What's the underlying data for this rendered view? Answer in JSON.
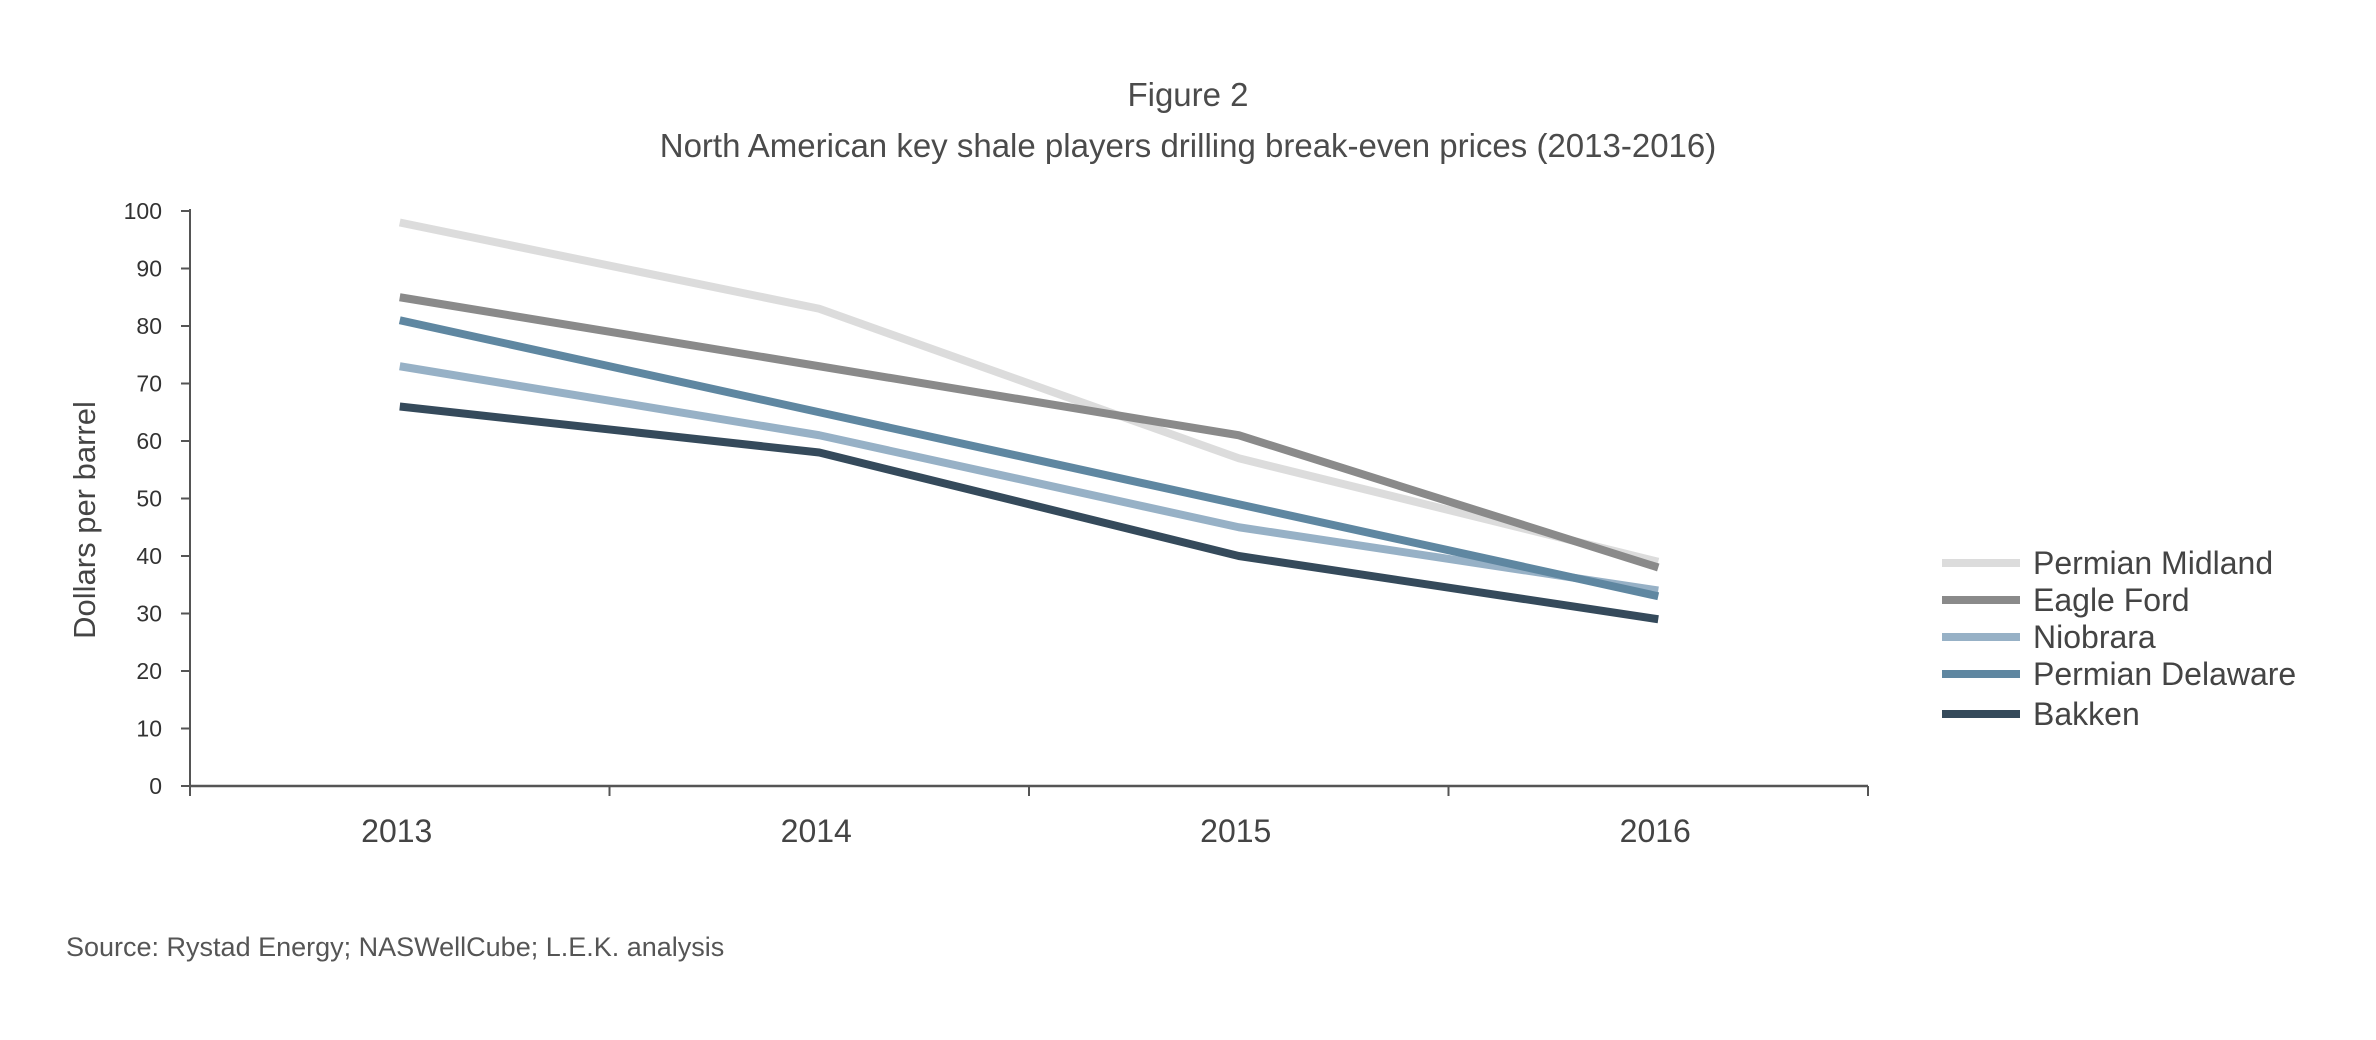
{
  "figure_label": "Figure 2",
  "source": "Source: Rystad Energy; NASWellCube; L.E.K. analysis",
  "chart_data": {
    "type": "line",
    "title": "North American key shale players drilling break-even prices (2013-2016)",
    "xlabel": "",
    "ylabel": "Dollars per barrel",
    "x": [
      "2013",
      "2014",
      "2015",
      "2016"
    ],
    "ylim": [
      0,
      100
    ],
    "yticks": [
      0,
      10,
      20,
      30,
      40,
      50,
      60,
      70,
      80,
      90,
      100
    ],
    "grid": false,
    "legend_position": "right",
    "series": [
      {
        "name": "Permian Midland",
        "color": "#dcdcdc",
        "values": [
          98,
          83,
          57,
          39
        ]
      },
      {
        "name": "Eagle Ford",
        "color": "#8a8a8a",
        "values": [
          85,
          73,
          61,
          38
        ]
      },
      {
        "name": "Niobrara",
        "color": "#97b1c6",
        "values": [
          73,
          61,
          45,
          34
        ]
      },
      {
        "name": "Permian Delaware",
        "color": "#5f87a1",
        "values": [
          81,
          65,
          49,
          33
        ]
      },
      {
        "name": "Bakken",
        "color": "#354a5b",
        "values": [
          66,
          58,
          40,
          29
        ]
      }
    ]
  }
}
